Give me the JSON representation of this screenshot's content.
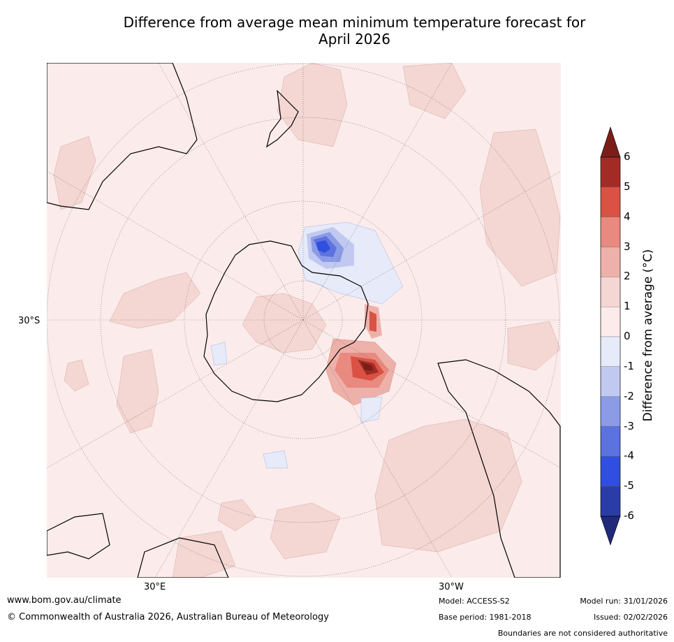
{
  "title": {
    "line1": "Difference from average mean minimum temperature forecast for",
    "line2": "April 2026"
  },
  "map": {
    "projection": "south-polar-stereographic",
    "lat_label": "30°S",
    "lon_labels": {
      "east": "30°E",
      "west": "30°W"
    },
    "features": [
      {
        "region": "Antarctic Peninsula / Weddell Sea",
        "anomaly_max": 6
      },
      {
        "region": "Ross Sea",
        "anomaly_min": -4
      }
    ]
  },
  "colorbar": {
    "title": "Difference from average (°C)",
    "ticks": [
      "6",
      "5",
      "4",
      "3",
      "2",
      "1",
      "0",
      "-1",
      "-2",
      "-3",
      "-4",
      "-5",
      "-6"
    ],
    "levels": [
      {
        "range": "5 to 6",
        "color": "#a32b26"
      },
      {
        "range": "4 to 5",
        "color": "#d95244"
      },
      {
        "range": "3 to 4",
        "color": "#e88a7f"
      },
      {
        "range": "2 to 3",
        "color": "#eeb1aa"
      },
      {
        "range": "1 to 2",
        "color": "#f4d6d3"
      },
      {
        "range": "0 to 1",
        "color": "#fbeceb"
      },
      {
        "range": "-1 to 0",
        "color": "#e6eaf9"
      },
      {
        "range": "-2 to -1",
        "color": "#c1c9f1"
      },
      {
        "range": "-3 to -2",
        "color": "#8b9be6"
      },
      {
        "range": "-4 to -3",
        "color": "#5c72de"
      },
      {
        "range": "-5 to -4",
        "color": "#304ee0"
      },
      {
        "range": "-6 to -5",
        "color": "#2a3ca8"
      }
    ],
    "over_color": "#7a1f18",
    "under_color": "#1f2a7a"
  },
  "footer": {
    "url": "www.bom.gov.au/climate",
    "copyright": "© Commonwealth of Australia 2026, Australian Bureau of Meteorology",
    "model": "Model: ACCESS-S2",
    "base_period": "Base period: 1981-2018",
    "model_run": "Model run: 31/01/2026",
    "issued": "Issued: 02/02/2026",
    "disclaimer": "Boundaries are not considered authoritative"
  }
}
